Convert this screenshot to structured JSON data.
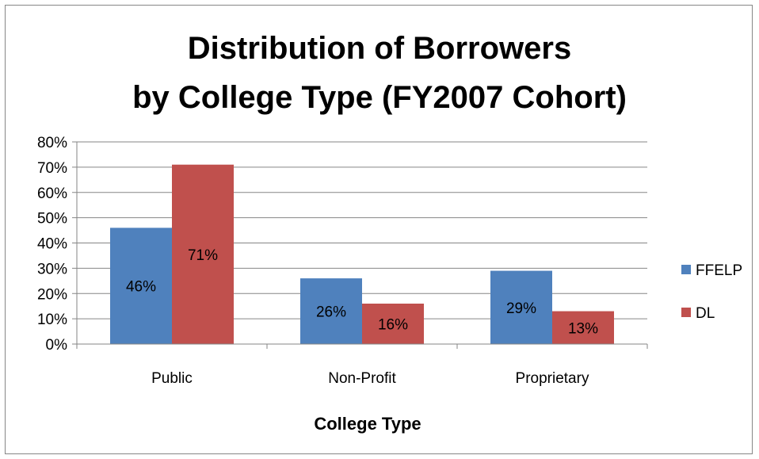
{
  "chart_data": {
    "type": "bar",
    "title_lines": [
      "Distribution of Borrowers",
      "by College Type (FY2007 Cohort)"
    ],
    "xlabel": "College Type",
    "ylabel": "",
    "categories": [
      "Public",
      "Non-Profit",
      "Proprietary"
    ],
    "series": [
      {
        "name": "FFELP",
        "values": [
          46,
          26,
          29
        ],
        "labels": [
          "46%",
          "26%",
          "29%"
        ],
        "color": "#4f81bd"
      },
      {
        "name": "DL",
        "values": [
          71,
          16,
          13
        ],
        "labels": [
          "71%",
          "16%",
          "13%"
        ],
        "color": "#c0504d"
      }
    ],
    "ylim": [
      0,
      80
    ],
    "y_ticks": [
      "0%",
      "10%",
      "20%",
      "30%",
      "40%",
      "50%",
      "60%",
      "70%",
      "80%"
    ],
    "grid": true,
    "legend_position": "right"
  }
}
